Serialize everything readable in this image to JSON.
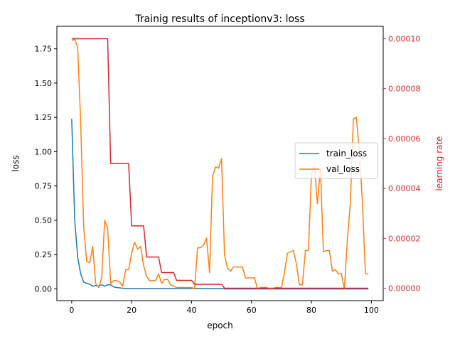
{
  "chart_data": {
    "type": "line",
    "title": "Trainig results of inceptionv3: loss",
    "xlabel": "epoch",
    "ylabel": "loss",
    "y2label": "learning rate",
    "xlim": [
      -4.95,
      103.95
    ],
    "ylim": [
      -0.0855,
      1.914
    ],
    "y2lim": [
      -5e-06,
      0.000105
    ],
    "x_ticks": [
      0,
      20,
      40,
      60,
      80,
      100
    ],
    "y_ticks": [
      0.0,
      0.25,
      0.5,
      0.75,
      1.0,
      1.25,
      1.5,
      1.75
    ],
    "y_tick_labels": [
      "0.00",
      "0.25",
      "0.50",
      "0.75",
      "1.00",
      "1.25",
      "1.50",
      "1.75"
    ],
    "y2_ticks": [
      0.0,
      2e-05,
      4e-05,
      6e-05,
      8e-05,
      0.0001
    ],
    "y2_tick_labels": [
      "0.00000",
      "0.00002",
      "0.00004",
      "0.00006",
      "0.00008",
      "0.00010"
    ],
    "grid": false,
    "legend": "center-right",
    "series": [
      {
        "name": "train_loss",
        "axis": "left",
        "color": "#1f77b4",
        "x": [
          0,
          1,
          2,
          3,
          4,
          5,
          6,
          7,
          8,
          9,
          10,
          11,
          12,
          13,
          14,
          15,
          16,
          17,
          18,
          19,
          20,
          25,
          30,
          35,
          40,
          45,
          50,
          51,
          55,
          60,
          65,
          70,
          75,
          80,
          85,
          90,
          95,
          99
        ],
        "values": [
          1.24,
          0.5,
          0.23,
          0.11,
          0.05,
          0.04,
          0.035,
          0.02,
          0.025,
          0.02,
          0.03,
          0.02,
          0.03,
          0.03,
          0.015,
          0.01,
          0.008,
          0.005,
          0.004,
          0.003,
          0.003,
          0.003,
          0.003,
          0.003,
          0.003,
          0.003,
          0.003,
          0.0,
          0.0,
          0.0,
          0.0,
          0.0,
          0.0,
          0.0,
          0.0,
          0.0,
          0.0,
          0.0
        ]
      },
      {
        "name": "val_loss",
        "axis": "left",
        "color": "#ff7f0e",
        "x": [
          0,
          1,
          2,
          3,
          4,
          5,
          6,
          7,
          8,
          9,
          10,
          11,
          12,
          13,
          14,
          15,
          16,
          17,
          18,
          19,
          20,
          21,
          22,
          23,
          24,
          25,
          26,
          27,
          28,
          29,
          30,
          31,
          32,
          33,
          34,
          35,
          36,
          37,
          38,
          39,
          40,
          41,
          42,
          43,
          44,
          45,
          46,
          47,
          48,
          49,
          50,
          51,
          52,
          53,
          54,
          55,
          56,
          57,
          58,
          59,
          60,
          61,
          62,
          63,
          64,
          65,
          66,
          67,
          68,
          69,
          70,
          71,
          72,
          73,
          74,
          75,
          76,
          77,
          78,
          79,
          80,
          81,
          82,
          83,
          84,
          85,
          86,
          87,
          88,
          89,
          90,
          91,
          92,
          93,
          94,
          95,
          96,
          97,
          98,
          99
        ],
        "values": [
          1.81,
          1.82,
          1.76,
          1.21,
          0.45,
          0.2,
          0.19,
          0.31,
          0.04,
          0.01,
          0.08,
          0.5,
          0.44,
          0.04,
          0.06,
          0.06,
          0.05,
          0.02,
          0.14,
          0.14,
          0.26,
          0.34,
          0.29,
          0.31,
          0.17,
          0.09,
          0.06,
          0.06,
          0.06,
          0.11,
          0.04,
          0.07,
          0.07,
          0.03,
          0.02,
          0.01,
          0.01,
          0.01,
          0.01,
          0.01,
          0.01,
          0.0,
          0.3,
          0.3,
          0.32,
          0.37,
          0.12,
          0.82,
          0.89,
          0.88,
          0.95,
          0.25,
          0.15,
          0.13,
          0.16,
          0.16,
          0.16,
          0.16,
          0.08,
          0.08,
          0.08,
          0.08,
          0.0,
          0.01,
          0.01,
          0.01,
          0.0,
          0.0,
          0.01,
          0.01,
          0.01,
          0.12,
          0.26,
          0.27,
          0.28,
          0.18,
          0.03,
          0.03,
          0.28,
          0.28,
          0.83,
          0.89,
          0.62,
          0.88,
          0.27,
          0.28,
          0.28,
          0.13,
          0.14,
          0.11,
          0.11,
          0.0,
          0.36,
          0.63,
          1.24,
          1.25,
          1.0,
          0.64,
          0.11,
          0.11
        ]
      },
      {
        "axis": "right",
        "color": "#d62728",
        "x": [
          0,
          12,
          13,
          19,
          20,
          24,
          25,
          29,
          30,
          34,
          35,
          40,
          41,
          50,
          51,
          99
        ],
        "values": [
          0.0001,
          0.0001,
          5e-05,
          5e-05,
          2.5e-05,
          2.5e-05,
          1.25e-05,
          1.25e-05,
          6.25e-06,
          6.25e-06,
          3.125e-06,
          3.125e-06,
          1.5625e-06,
          1.5625e-06,
          0.0,
          0.0
        ]
      }
    ]
  }
}
